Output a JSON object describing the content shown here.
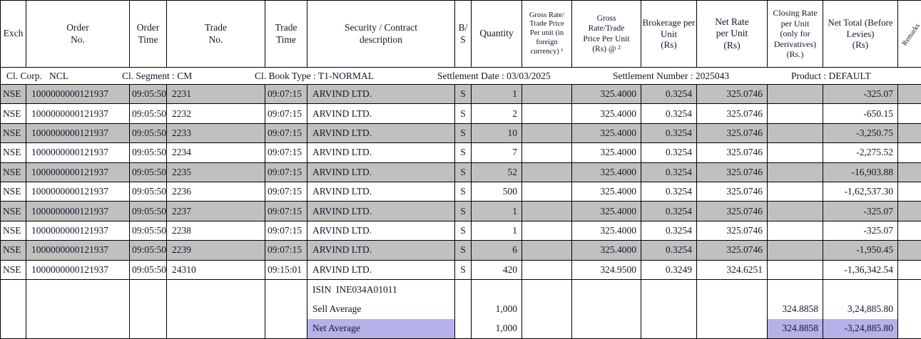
{
  "colors": {
    "row_shade": "#c0c0c0",
    "highlight": "#b5b1e9",
    "border": "#000000",
    "text": "#15152e"
  },
  "columns": [
    "Exch",
    "Order\nNo.",
    "Order\nTime",
    "Trade\nNo.",
    "Trade\nTime",
    "Security / Contract\ndescription",
    "B/\nS",
    "Quantity",
    "Gross Rate/\nTrade Price\nPer unit (in\nforeign\ncurrency) ¹",
    "Gross\nRate/Trade\nPrice Per Unit\n(Rs) @ ²",
    "Brokerage per\nUnit\n(Rs)",
    "Net Rate\nper Unit\n(Rs)",
    "Closing Rate\nper Unit\n(only for\nDerivatives)\n(Rs.)",
    "Net Total (Before\nLevies)\n(Rs)",
    "Remarks"
  ],
  "subheader": {
    "cl_corp": "Cl. Corp.   NCL",
    "cl_segment": "Cl. Segment : CM",
    "cl_book_type": "Cl. Book Type : T1-NORMAL",
    "settlement_date": "Settlement Date : 03/03/2025",
    "settlement_number": "Settlement Number : 2025043",
    "product": "Product : DEFAULT"
  },
  "rows": [
    {
      "exch": "NSE",
      "order_no": "1000000000121937",
      "order_time": "09:05:50",
      "trade_no": "2231",
      "trade_time": "09:07:15",
      "security": "ARVIND LTD.",
      "bs": "S",
      "qty": "1",
      "gross_foreign": "",
      "gross_rs": "325.4000",
      "brokerage": "0.3254",
      "net_rate": "325.0746",
      "closing": "",
      "net_total": "-325.07",
      "remarks": ""
    },
    {
      "exch": "NSE",
      "order_no": "1000000000121937",
      "order_time": "09:05:50",
      "trade_no": "2232",
      "trade_time": "09:07:15",
      "security": "ARVIND LTD.",
      "bs": "S",
      "qty": "2",
      "gross_foreign": "",
      "gross_rs": "325.4000",
      "brokerage": "0.3254",
      "net_rate": "325.0746",
      "closing": "",
      "net_total": "-650.15",
      "remarks": ""
    },
    {
      "exch": "NSE",
      "order_no": "1000000000121937",
      "order_time": "09:05:50",
      "trade_no": "2233",
      "trade_time": "09:07:15",
      "security": "ARVIND LTD.",
      "bs": "S",
      "qty": "10",
      "gross_foreign": "",
      "gross_rs": "325.4000",
      "brokerage": "0.3254",
      "net_rate": "325.0746",
      "closing": "",
      "net_total": "-3,250.75",
      "remarks": ""
    },
    {
      "exch": "NSE",
      "order_no": "1000000000121937",
      "order_time": "09:05:50",
      "trade_no": "2234",
      "trade_time": "09:07:15",
      "security": "ARVIND LTD.",
      "bs": "S",
      "qty": "7",
      "gross_foreign": "",
      "gross_rs": "325.4000",
      "brokerage": "0.3254",
      "net_rate": "325.0746",
      "closing": "",
      "net_total": "-2,275.52",
      "remarks": ""
    },
    {
      "exch": "NSE",
      "order_no": "1000000000121937",
      "order_time": "09:05:50",
      "trade_no": "2235",
      "trade_time": "09:07:15",
      "security": "ARVIND LTD.",
      "bs": "S",
      "qty": "52",
      "gross_foreign": "",
      "gross_rs": "325.4000",
      "brokerage": "0.3254",
      "net_rate": "325.0746",
      "closing": "",
      "net_total": "-16,903.88",
      "remarks": ""
    },
    {
      "exch": "NSE",
      "order_no": "1000000000121937",
      "order_time": "09:05:50",
      "trade_no": "2236",
      "trade_time": "09:07:15",
      "security": "ARVIND LTD.",
      "bs": "S",
      "qty": "500",
      "gross_foreign": "",
      "gross_rs": "325.4000",
      "brokerage": "0.3254",
      "net_rate": "325.0746",
      "closing": "",
      "net_total": "-1,62,537.30",
      "remarks": ""
    },
    {
      "exch": "NSE",
      "order_no": "1000000000121937",
      "order_time": "09:05:50",
      "trade_no": "2237",
      "trade_time": "09:07:15",
      "security": "ARVIND LTD.",
      "bs": "S",
      "qty": "1",
      "gross_foreign": "",
      "gross_rs": "325.4000",
      "brokerage": "0.3254",
      "net_rate": "325.0746",
      "closing": "",
      "net_total": "-325.07",
      "remarks": ""
    },
    {
      "exch": "NSE",
      "order_no": "1000000000121937",
      "order_time": "09:05:50",
      "trade_no": "2238",
      "trade_time": "09:07:15",
      "security": "ARVIND LTD.",
      "bs": "S",
      "qty": "1",
      "gross_foreign": "",
      "gross_rs": "325.4000",
      "brokerage": "0.3254",
      "net_rate": "325.0746",
      "closing": "",
      "net_total": "-325.07",
      "remarks": ""
    },
    {
      "exch": "NSE",
      "order_no": "1000000000121937",
      "order_time": "09:05:50",
      "trade_no": "2239",
      "trade_time": "09:07:15",
      "security": "ARVIND LTD.",
      "bs": "S",
      "qty": "6",
      "gross_foreign": "",
      "gross_rs": "325.4000",
      "brokerage": "0.3254",
      "net_rate": "325.0746",
      "closing": "",
      "net_total": "-1,950.45",
      "remarks": ""
    },
    {
      "exch": "NSE",
      "order_no": "1000000000121937",
      "order_time": "09:05:50",
      "trade_no": "24310",
      "trade_time": "09:15:01",
      "security": "ARVIND LTD.",
      "bs": "S",
      "qty": "420",
      "gross_foreign": "",
      "gross_rs": "324.9500",
      "brokerage": "0.3249",
      "net_rate": "324.6251",
      "closing": "",
      "net_total": "-1,36,342.54",
      "remarks": ""
    }
  ],
  "summary": {
    "rows": [
      {
        "security": "ISIN  INE034A01011",
        "qty": "",
        "closing": "",
        "net_total": "",
        "highlight": false
      },
      {
        "security": "Sell Average",
        "qty": "1,000",
        "closing": "324.8858",
        "net_total": "3,24,885.80",
        "highlight": false
      },
      {
        "security": "Net Average",
        "qty": "1,000",
        "closing": "324.8858",
        "net_total": "-3,24,885.80",
        "highlight": true
      }
    ]
  }
}
